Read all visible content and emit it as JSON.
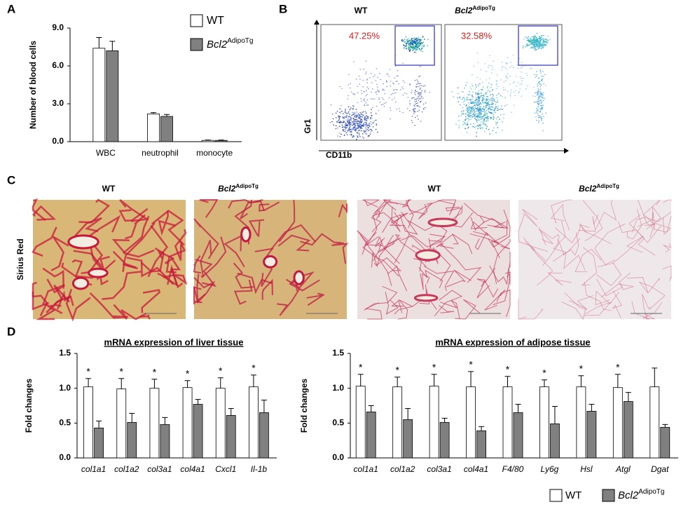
{
  "panels": {
    "a": "A",
    "b": "B",
    "c": "C",
    "d": "D"
  },
  "flow": {
    "columns": [
      {
        "name": "WT"
      },
      {
        "name": "Bcl2",
        "name_sup": "AdipoTg"
      }
    ],
    "percentages": [
      "47.25%",
      "32.58%"
    ],
    "y_label": "Gr1",
    "x_label": "CD11b"
  },
  "histology": {
    "row_label": "Sirius Red",
    "columns": [
      {
        "name": "WT"
      },
      {
        "name": "Bcl2",
        "name_sup": "AdipoTg"
      },
      {
        "name": "WT"
      },
      {
        "name": "Bcl2",
        "name_sup": "AdipoTg"
      }
    ]
  },
  "chart_data": [
    {
      "type": "bar",
      "y_label": "Number of blood cells",
      "categories": [
        "WBC",
        "neutrophil",
        "monocyte"
      ],
      "series": [
        {
          "name": "WT",
          "color": "#ffffff",
          "values": [
            7.4,
            2.2,
            0.1
          ],
          "errors": [
            0.85,
            0.1,
            0.03
          ]
        },
        {
          "name": "Bcl2",
          "name_sup": "AdipoTg",
          "color": "#808080",
          "values": [
            7.2,
            2.0,
            0.1
          ],
          "errors": [
            0.75,
            0.15,
            0.03
          ]
        }
      ],
      "ylim": [
        0,
        9
      ],
      "yticks": [
        {
          "value": 0,
          "label": "0.0"
        },
        {
          "value": 3,
          "label": "3.0"
        },
        {
          "value": 6,
          "label": "6.0"
        },
        {
          "value": 9,
          "label": "9.0"
        }
      ],
      "grid": false
    },
    {
      "type": "bar",
      "title": "mRNA expression of liver tissue",
      "y_label": "Fold changes",
      "categories": [
        "col1a1",
        "col1a2",
        "col3a1",
        "col4a1",
        "Cxcl1",
        "Il-1b"
      ],
      "series": [
        {
          "color": "#ffffff",
          "values": [
            1.02,
            0.99,
            1.0,
            1.01,
            1.0,
            1.02
          ],
          "errors": [
            0.12,
            0.15,
            0.13,
            0.1,
            0.15,
            0.17
          ]
        },
        {
          "color": "#808080",
          "values": [
            0.43,
            0.51,
            0.48,
            0.77,
            0.61,
            0.65
          ],
          "errors": [
            0.1,
            0.13,
            0.1,
            0.07,
            0.1,
            0.18
          ]
        }
      ],
      "significance": [
        "*",
        "*",
        "*",
        "*",
        "*",
        "*"
      ],
      "ylim": [
        0,
        1.5
      ],
      "yticks": [
        {
          "value": 0,
          "label": "0.0"
        },
        {
          "value": 0.5,
          "label": "0.5"
        },
        {
          "value": 1,
          "label": "1.0"
        },
        {
          "value": 1.5,
          "label": "1.5"
        }
      ],
      "grid": false
    },
    {
      "type": "bar",
      "title": "mRNA expression of adipose tissue",
      "y_label": "Fold changes",
      "categories": [
        "col1a1",
        "col1a2",
        "col3a1",
        "col4a1",
        "F4/80",
        "Ly6g",
        "Hsl",
        "Atgl",
        "Dgat"
      ],
      "series": [
        {
          "name": "WT",
          "color": "#ffffff",
          "values": [
            1.03,
            1.02,
            1.03,
            1.02,
            1.02,
            1.02,
            1.02,
            1.01,
            1.02
          ],
          "errors": [
            0.17,
            0.14,
            0.17,
            0.22,
            0.15,
            0.1,
            0.16,
            0.19,
            0.27
          ]
        },
        {
          "name": "Bcl2",
          "name_sup": "AdipoTg",
          "color": "#808080",
          "values": [
            0.66,
            0.55,
            0.51,
            0.39,
            0.65,
            0.49,
            0.67,
            0.81,
            0.44
          ],
          "errors": [
            0.09,
            0.16,
            0.06,
            0.06,
            0.12,
            0.25,
            0.1,
            0.13,
            0.04
          ]
        }
      ],
      "significance": [
        "*",
        "*",
        "*",
        "*",
        "*",
        "*",
        "*",
        "*",
        null
      ],
      "ylim": [
        0,
        1.5
      ],
      "yticks": [
        {
          "value": 0,
          "label": "0.0"
        },
        {
          "value": 0.5,
          "label": "0.5"
        },
        {
          "value": 1,
          "label": "1.0"
        },
        {
          "value": 1.5,
          "label": "1.5"
        }
      ],
      "grid": false
    }
  ]
}
